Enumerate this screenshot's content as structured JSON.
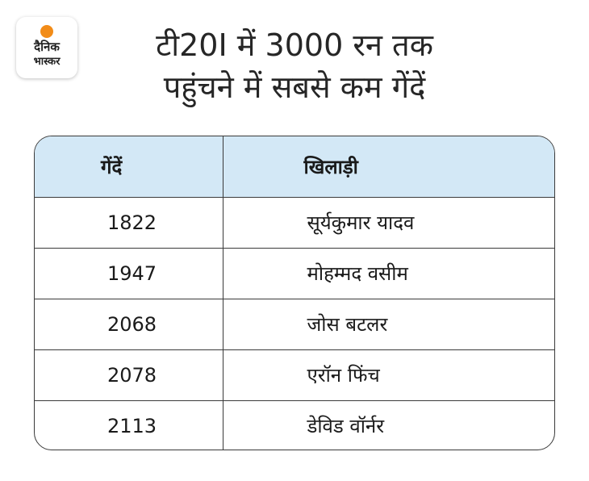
{
  "logo": {
    "line1": "दैनिक",
    "line2": "भास्कर",
    "accent_color": "#f28c18"
  },
  "title": {
    "line1": "टी20I में 3000 रन तक",
    "line2": "पहुंचने में सबसे कम गेंदें"
  },
  "table": {
    "header_color": "#d3e8f6",
    "columns": [
      "गेंदें",
      "खिलाड़ी"
    ],
    "rows": [
      [
        "1822",
        "सूर्यकुमार यादव"
      ],
      [
        "1947",
        "मोहम्मद वसीम"
      ],
      [
        "2068",
        "जोस बटलर"
      ],
      [
        "2078",
        "एरॉन फिंच"
      ],
      [
        "2113",
        "डेविड वॉर्नर"
      ]
    ]
  }
}
